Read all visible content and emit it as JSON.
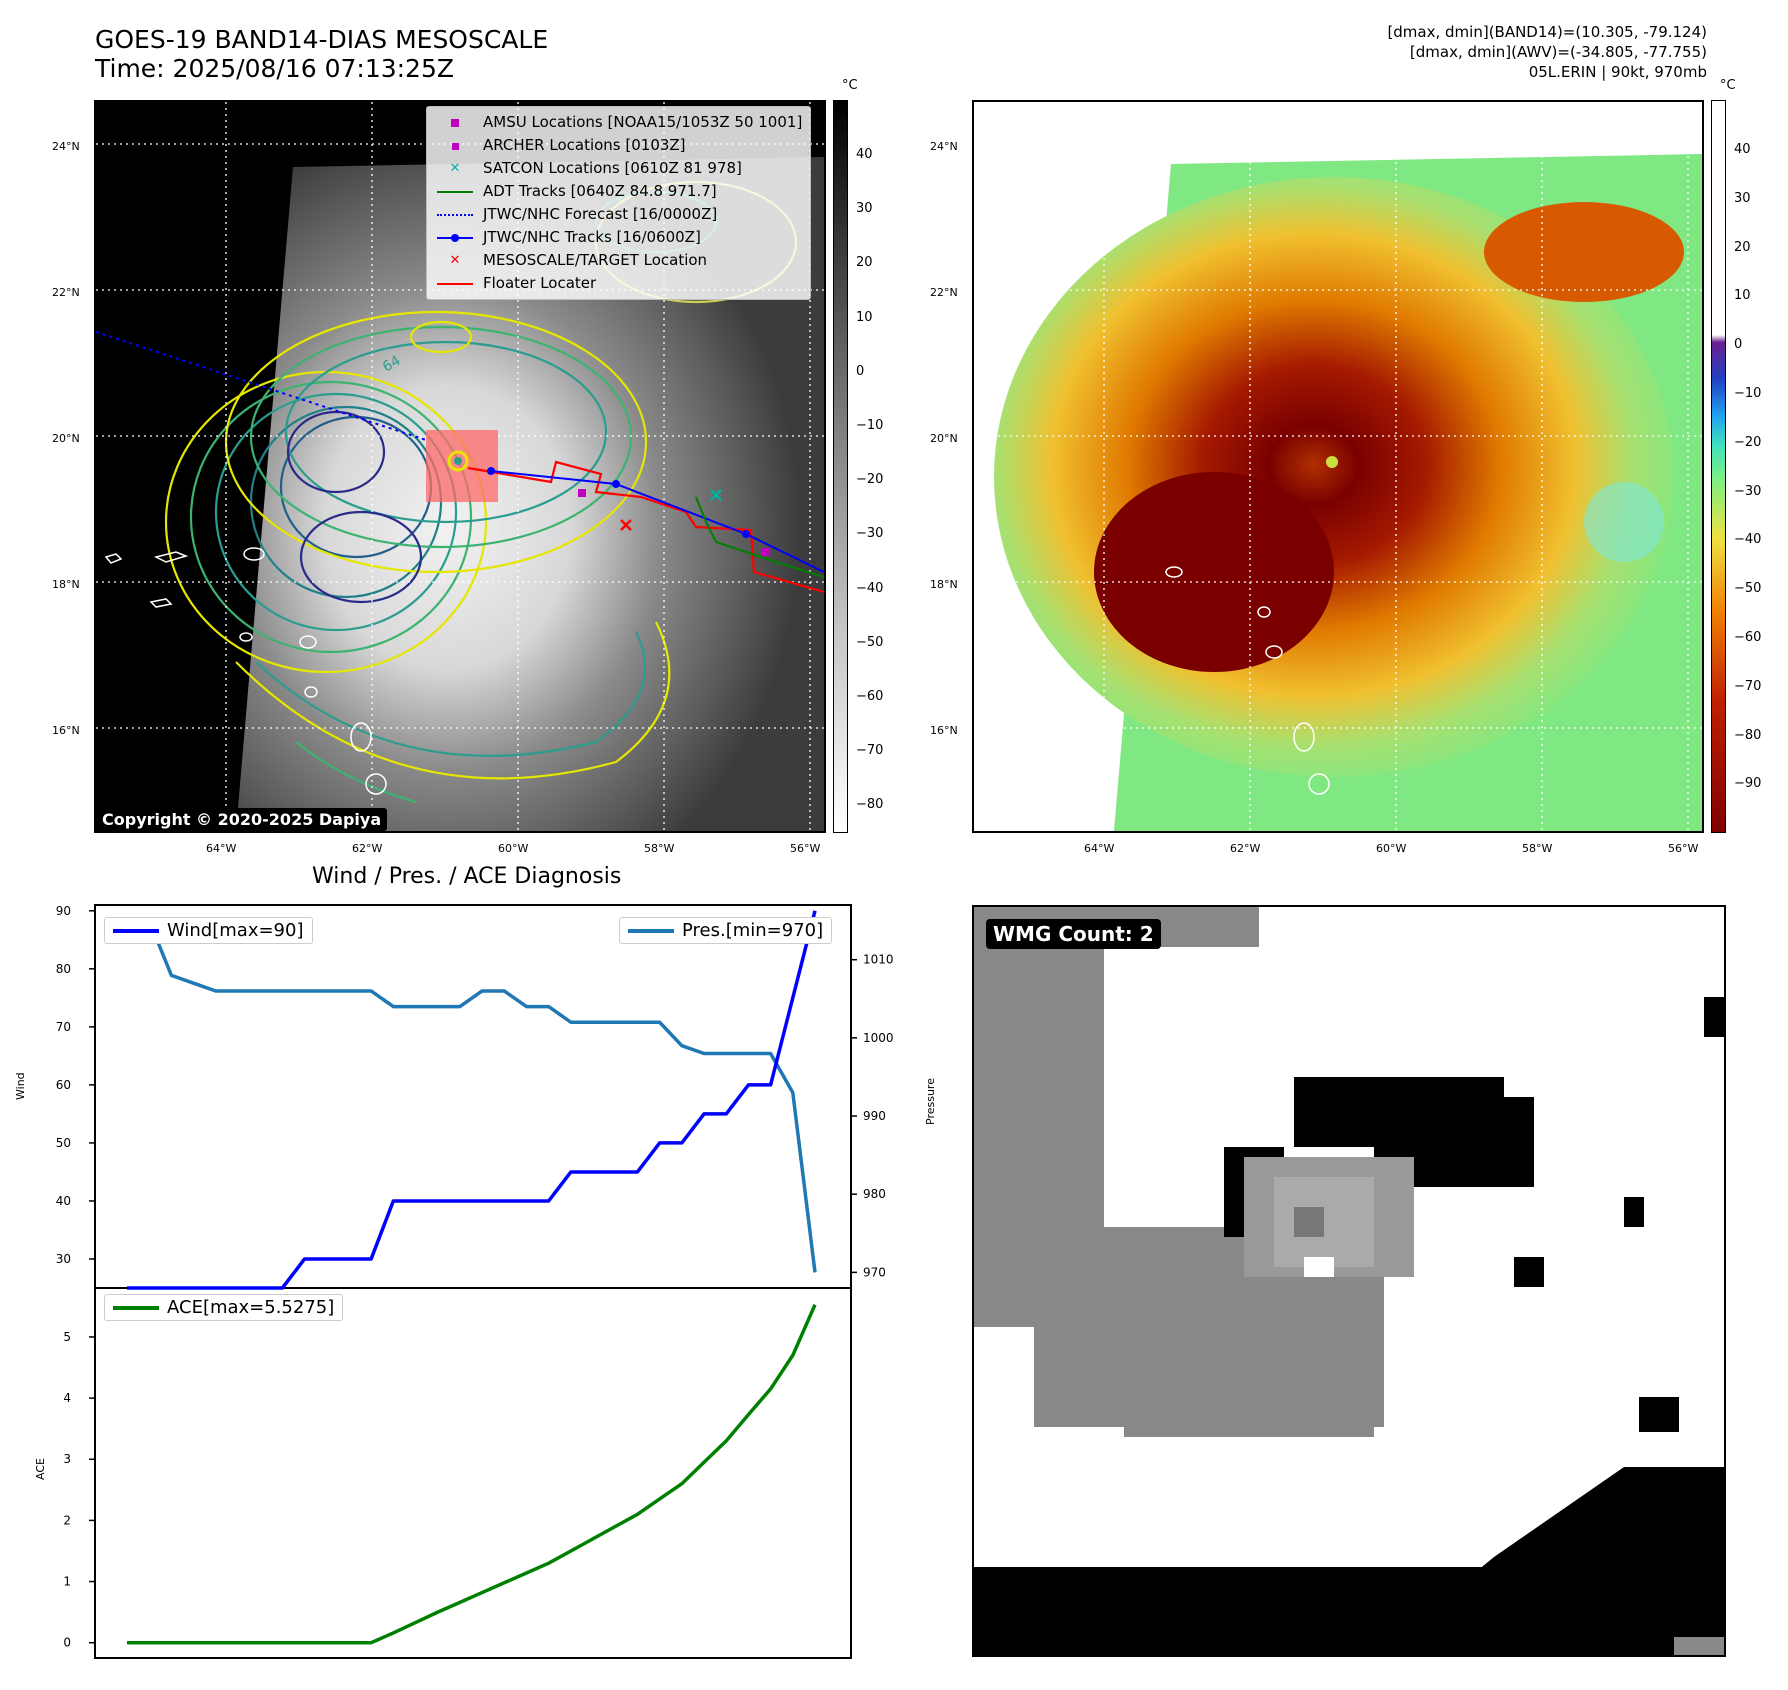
{
  "header": {
    "title_line1": "GOES-19 BAND14-DIAS MESOSCALE",
    "title_line2": "Time: 2025/08/16 07:13:25Z",
    "right_line1": "[dmax, dmin](BAND14)=(10.305, -79.124)",
    "right_line2": "[dmax, dmin](AWV)=(-34.805, -77.755)",
    "right_line3": "05L.ERIN | 90kt, 970mb"
  },
  "map_panel": {
    "lat_labels": [
      "24°N",
      "22°N",
      "20°N",
      "18°N",
      "16°N"
    ],
    "lon_labels": [
      "64°W",
      "62°W",
      "60°W",
      "58°W",
      "56°W"
    ],
    "copyright": "Copyright © 2020-2025 Dapiya",
    "unit": "°C",
    "colorbar_ticks": [
      "40",
      "30",
      "20",
      "10",
      "0",
      "−10",
      "−20",
      "−30",
      "−40",
      "−50",
      "−60",
      "−70",
      "−80"
    ],
    "contour_label": "64",
    "legend": [
      {
        "label": "AMSU Locations [NOAA15/1053Z 50 1001]",
        "icon": "magenta-square"
      },
      {
        "label": "ARCHER Locations [0103Z]",
        "icon": "magenta-square-small"
      },
      {
        "label": "SATCON Locations [0610Z 81 978]",
        "icon": "cyan-x"
      },
      {
        "label": "ADT Tracks [0640Z 84.8 971.7]",
        "icon": "green-line"
      },
      {
        "label": "JTWC/NHC Forecast [16/0000Z]",
        "icon": "blue-dotted-line"
      },
      {
        "label": "JTWC/NHC Tracks [16/0600Z]",
        "icon": "blue-line-dot"
      },
      {
        "label": "MESOSCALE/TARGET Location",
        "icon": "red-x"
      },
      {
        "label": "Floater Locater",
        "icon": "red-line"
      }
    ]
  },
  "awv_panel": {
    "lat_labels": [
      "24°N",
      "22°N",
      "20°N",
      "18°N",
      "16°N"
    ],
    "lon_labels": [
      "64°W",
      "62°W",
      "60°W",
      "58°W",
      "56°W"
    ],
    "unit": "°C",
    "colorbar_ticks": [
      "40",
      "30",
      "20",
      "10",
      "0",
      "−10",
      "−20",
      "−30",
      "−40",
      "−50",
      "−60",
      "−70",
      "−80",
      "−90"
    ]
  },
  "wmg_panel": {
    "label": "WMG Count: 2"
  },
  "colors": {
    "wind": "#0000ff",
    "pressure": "#1f77b4",
    "ace": "#008000",
    "floater": "#ff0000",
    "satcon": "#00b3a4",
    "amsu": "#c000c0"
  },
  "chart_data": [
    {
      "type": "line",
      "title": "Wind / Pres. / ACE Diagnosis",
      "ylabel": "Wind",
      "ylabel_right": "Pressure",
      "x": [
        0,
        1,
        2,
        3,
        4,
        5,
        6,
        7,
        8,
        9,
        10,
        11,
        12,
        13,
        14,
        15,
        16,
        17,
        18,
        19,
        20,
        21,
        22,
        23,
        24,
        25,
        26,
        27,
        28,
        29,
        30,
        31
      ],
      "ylim": [
        25,
        91
      ],
      "ylim_right": [
        968,
        1017
      ],
      "yticks": [
        "90",
        "80",
        "70",
        "60",
        "50",
        "40",
        "30"
      ],
      "yticks_right": [
        "1010",
        "1000",
        "990",
        "980",
        "970"
      ],
      "series": [
        {
          "name": "Wind[max=90]",
          "axis": "left",
          "values": [
            25,
            25,
            25,
            25,
            25,
            25,
            25,
            25,
            30,
            30,
            30,
            30,
            40,
            40,
            40,
            40,
            40,
            40,
            40,
            40,
            45,
            45,
            45,
            45,
            50,
            50,
            55,
            55,
            60,
            60,
            75,
            90
          ]
        },
        {
          "name": "Pres.[min=970]",
          "axis": "right",
          "values": [
            1015,
            1015,
            1008,
            1007,
            1006,
            1006,
            1006,
            1006,
            1006,
            1006,
            1006,
            1006,
            1004,
            1004,
            1004,
            1004,
            1006,
            1006,
            1004,
            1004,
            1002,
            1002,
            1002,
            1002,
            1002,
            999,
            998,
            998,
            998,
            998,
            993,
            970
          ]
        }
      ]
    },
    {
      "type": "line",
      "ylabel": "ACE",
      "x": [
        0,
        1,
        2,
        3,
        4,
        5,
        6,
        7,
        8,
        9,
        10,
        11,
        12,
        13,
        14,
        15,
        16,
        17,
        18,
        19,
        20,
        21,
        22,
        23,
        24,
        25,
        26,
        27,
        28,
        29,
        30,
        31
      ],
      "ylim": [
        -0.25,
        5.8
      ],
      "yticks": [
        "5",
        "4",
        "3",
        "2",
        "1",
        "0"
      ],
      "series": [
        {
          "name": "ACE[max=5.5275]",
          "values": [
            0,
            0,
            0,
            0,
            0,
            0,
            0,
            0,
            0,
            0,
            0,
            0,
            0.16,
            0.33,
            0.5,
            0.66,
            0.82,
            0.98,
            1.14,
            1.3,
            1.5,
            1.7,
            1.9,
            2.1,
            2.35,
            2.6,
            2.95,
            3.3,
            3.73,
            4.15,
            4.7,
            5.5275
          ]
        }
      ]
    }
  ]
}
